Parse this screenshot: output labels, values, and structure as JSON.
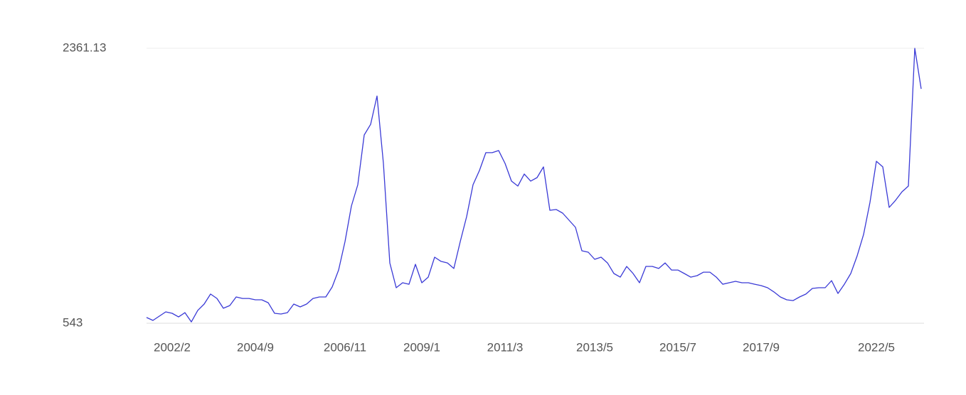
{
  "chart_data": {
    "type": "line",
    "categories": [
      null,
      null,
      null,
      null,
      "2002/2",
      null,
      null,
      null,
      null,
      null,
      null,
      null,
      null,
      null,
      null,
      null,
      null,
      "2004/9",
      null,
      null,
      null,
      null,
      null,
      null,
      null,
      null,
      null,
      null,
      null,
      null,
      null,
      "2006/11",
      null,
      null,
      null,
      null,
      null,
      null,
      null,
      null,
      null,
      null,
      null,
      "2009/1",
      null,
      null,
      null,
      null,
      null,
      null,
      null,
      null,
      null,
      null,
      null,
      null,
      "2011/3",
      null,
      null,
      null,
      null,
      null,
      null,
      null,
      null,
      null,
      null,
      null,
      null,
      null,
      "2013/5",
      null,
      null,
      null,
      null,
      null,
      null,
      null,
      null,
      null,
      null,
      null,
      null,
      "2015/7",
      null,
      null,
      null,
      null,
      null,
      null,
      null,
      null,
      null,
      null,
      null,
      null,
      "2017/9",
      null,
      null,
      null,
      null,
      null,
      null,
      null,
      null,
      null,
      null,
      null,
      null,
      null,
      null,
      null,
      null,
      null,
      "2022/5",
      null,
      null,
      null,
      null,
      null,
      null,
      null
    ],
    "series": [
      {
        "color": "#3a3ad6",
        "values": [
          581,
          562,
          590,
          618,
          609,
          585,
          613,
          552,
          628,
          670,
          736,
          707,
          642,
          660,
          717,
          707,
          707,
          698,
          698,
          679,
          609,
          604,
          613,
          670,
          651,
          670,
          707,
          717,
          717,
          783,
          895,
          1083,
          1318,
          1459,
          1788,
          1858,
          2046,
          1600,
          942,
          778,
          811,
          801,
          933,
          811,
          848,
          980,
          952,
          942,
          905,
          1083,
          1248,
          1459,
          1553,
          1671,
          1671,
          1685,
          1600,
          1483,
          1450,
          1530,
          1483,
          1506,
          1577,
          1290,
          1295,
          1271,
          1224,
          1177,
          1022,
          1013,
          966,
          980,
          942,
          872,
          848,
          919,
          872,
          811,
          919,
          919,
          905,
          942,
          895,
          895,
          872,
          848,
          858,
          881,
          881,
          848,
          801,
          811,
          820,
          811,
          811,
          801,
          792,
          778,
          750,
          717,
          698,
          693,
          717,
          736,
          773,
          778,
          778,
          825,
          740,
          801,
          872,
          989,
          1130,
          1342,
          1614,
          1577,
          1309,
          1356,
          1412,
          1450,
          2361.13,
          2093
        ]
      }
    ],
    "ylim": [
      543,
      2361.13
    ],
    "yticks": [
      543,
      2361.13
    ],
    "grid": true
  }
}
